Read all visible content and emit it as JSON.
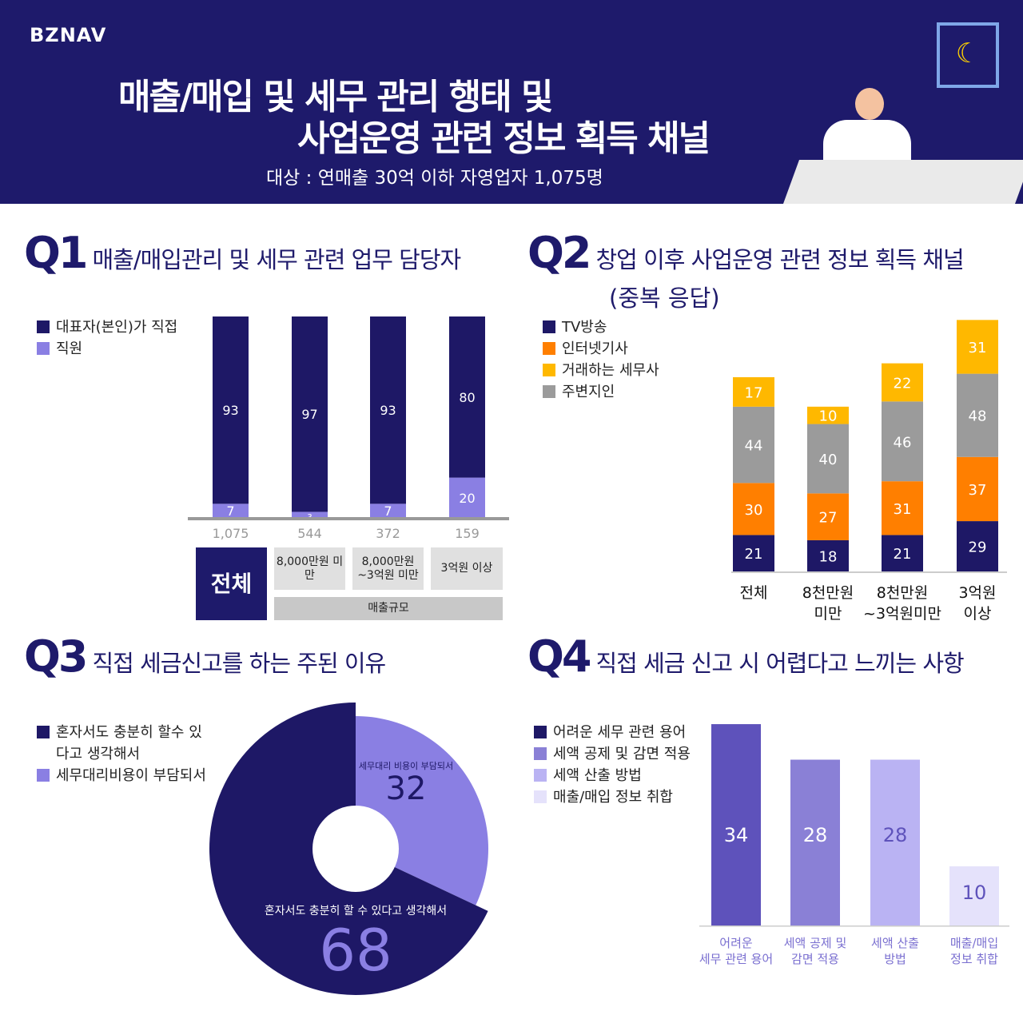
{
  "header": {
    "logo": "BZNAV",
    "title_line1": "매출/매입 및 세무 관리 행태 및",
    "title_line2": "사업운영 관련 정보 획득 채널",
    "subtitle": "대상 : 연매출 30억 이하 자영업자 1,075명"
  },
  "q1": {
    "num": "Q1",
    "title": "매출/매입관리 및 세무 관련 업무 담당자",
    "total_label": "전체",
    "group_label": "매출규모"
  },
  "q2": {
    "num": "Q2",
    "title": "창업 이후 사업운영 관련 정보 획득 채널",
    "title2": "(중복 응답)"
  },
  "q3": {
    "num": "Q3",
    "title": "직접 세금신고를 하는 주된 이유"
  },
  "q4": {
    "num": "Q4",
    "title": "직접 세금 신고 시 어렵다고 느끼는 사항"
  },
  "chart_data": [
    {
      "type": "bar",
      "stacked": true,
      "title": "매출/매입관리 및 세무 관련 업무 담당자",
      "categories": [
        "전체",
        "8,000만원 미만",
        "8,000만원 ~3억원 미만",
        "3억원 이상"
      ],
      "counts": [
        "1,075",
        "544",
        "372",
        "159"
      ],
      "series": [
        {
          "name": "대표자(본인)가 직접",
          "color": "#1e1866",
          "values": [
            93,
            97,
            93,
            80
          ]
        },
        {
          "name": "직원",
          "color": "#8a7fe3",
          "values": [
            7,
            3,
            7,
            20
          ]
        }
      ],
      "ylim": [
        0,
        100
      ]
    },
    {
      "type": "bar",
      "stacked": true,
      "title": "창업 이후 사업운영 관련 정보 획득 채널 (중복 응답)",
      "categories": [
        "전체",
        "8천만원 미만",
        "8천만원 ~3억원미만",
        "3억원 이상"
      ],
      "series": [
        {
          "name": "TV방송",
          "color": "#1e1866",
          "values": [
            21,
            18,
            21,
            29
          ]
        },
        {
          "name": "인터넷기사",
          "color": "#ff7f00",
          "values": [
            30,
            27,
            31,
            37
          ]
        },
        {
          "name": "주변지인",
          "color": "#9b9b9b",
          "values": [
            44,
            40,
            46,
            48
          ]
        },
        {
          "name": "거래하는 세무사",
          "color": "#ffb800",
          "values": [
            17,
            10,
            22,
            31
          ]
        }
      ],
      "legend_order": [
        "TV방송",
        "인터넷기사",
        "거래하는 세무사",
        "주변지인"
      ]
    },
    {
      "type": "pie",
      "title": "직접 세금신고를 하는 주된 이유",
      "legend": [
        "혼자서도 충분히 할수 있다고 생각해서",
        "세무대리비용이 부담되서"
      ],
      "slices": [
        {
          "label": "세무대리 비용이 부담되서",
          "value": 32,
          "color": "#8a7fe3"
        },
        {
          "label": "혼자서도 충분히 할 수 있다고 생각해서",
          "value": 68,
          "color": "#1e1866"
        }
      ]
    },
    {
      "type": "bar",
      "title": "직접 세금 신고 시 어렵다고 느끼는 사항",
      "categories": [
        "어려운 세무 관련 용어",
        "세액 공제 및 감면 적용",
        "세액 산출 방법",
        "매출/매입 정보 취합"
      ],
      "axis_labels": [
        [
          "어려운",
          "세무 관련 용어"
        ],
        [
          "세액 공제 및",
          "감면 적용"
        ],
        [
          "세액 산출",
          "방법"
        ],
        [
          "매출/매입",
          "정보 취합"
        ]
      ],
      "values": [
        34,
        28,
        28,
        10
      ],
      "colors": [
        "#5e52bb",
        "#8a80d6",
        "#bab3f3",
        "#e5e2fb"
      ],
      "label_colors": [
        "#ffffff",
        "#ffffff",
        "#5e52bb",
        "#5e52bb"
      ]
    }
  ]
}
